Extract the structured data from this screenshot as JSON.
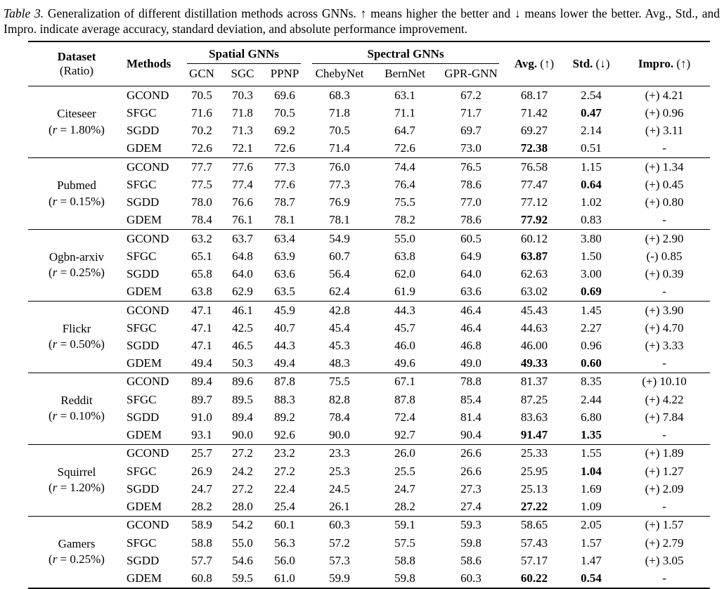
{
  "caption": {
    "label": "Table 3.",
    "text": "Generalization of different distillation methods across GNNs. ↑ means higher the better and ↓ means lower the better. Avg., Std., and Impro. indicate average accuracy, standard deviation, and absolute performance improvement."
  },
  "table": {
    "col_headers": {
      "dataset_line1": "Dataset",
      "dataset_line2": "(Ratio)",
      "methods": "Methods",
      "spatial_group": "Spatial GNNs",
      "spectral_group": "Spectral GNNs",
      "spatial_cols": [
        "GCN",
        "SGC",
        "PPNP"
      ],
      "spectral_cols": [
        "ChebyNet",
        "BernNet",
        "GPR-GNN"
      ],
      "avg": {
        "name": "Avg.",
        "arrow": "(↑)"
      },
      "std": {
        "name": "Std.",
        "arrow": "(↓)"
      },
      "impro": {
        "name": "Impro.",
        "arrow": "(↑)"
      }
    },
    "groups": [
      {
        "dataset": "Citeseer",
        "ratio": "(r = 1.80%)",
        "rows": [
          {
            "method": "GCOND",
            "values": [
              "70.5",
              "70.3",
              "69.6",
              "68.3",
              "63.1",
              "67.2"
            ],
            "avg": "68.17",
            "avg_bold": false,
            "std": "2.54",
            "std_bold": false,
            "impro": "(+) 4.21"
          },
          {
            "method": "SFGC",
            "values": [
              "71.6",
              "71.8",
              "70.5",
              "71.8",
              "71.1",
              "71.7"
            ],
            "avg": "71.42",
            "avg_bold": false,
            "std": "0.47",
            "std_bold": true,
            "impro": "(+) 0.96"
          },
          {
            "method": "SGDD",
            "values": [
              "70.2",
              "71.3",
              "69.2",
              "70.5",
              "64.7",
              "69.7"
            ],
            "avg": "69.27",
            "avg_bold": false,
            "std": "2.14",
            "std_bold": false,
            "impro": "(+) 3.11"
          },
          {
            "method": "GDEM",
            "values": [
              "72.6",
              "72.1",
              "72.6",
              "71.4",
              "72.6",
              "73.0"
            ],
            "avg": "72.38",
            "avg_bold": true,
            "std": "0.51",
            "std_bold": false,
            "impro": "-"
          }
        ]
      },
      {
        "dataset": "Pubmed",
        "ratio": "(r = 0.15%)",
        "rows": [
          {
            "method": "GCOND",
            "values": [
              "77.7",
              "77.6",
              "77.3",
              "76.0",
              "74.4",
              "76.5"
            ],
            "avg": "76.58",
            "avg_bold": false,
            "std": "1.15",
            "std_bold": false,
            "impro": "(+) 1.34"
          },
          {
            "method": "SFGC",
            "values": [
              "77.5",
              "77.4",
              "77.6",
              "77.3",
              "76.4",
              "78.6"
            ],
            "avg": "77.47",
            "avg_bold": false,
            "std": "0.64",
            "std_bold": true,
            "impro": "(+) 0.45"
          },
          {
            "method": "SGDD",
            "values": [
              "78.0",
              "76.6",
              "78.7",
              "76.9",
              "75.5",
              "77.0"
            ],
            "avg": "77.12",
            "avg_bold": false,
            "std": "1.02",
            "std_bold": false,
            "impro": "(+) 0.80"
          },
          {
            "method": "GDEM",
            "values": [
              "78.4",
              "76.1",
              "78.1",
              "78.1",
              "78.2",
              "78.6"
            ],
            "avg": "77.92",
            "avg_bold": true,
            "std": "0.83",
            "std_bold": false,
            "impro": "-"
          }
        ]
      },
      {
        "dataset": "Ogbn-arxiv",
        "ratio": "(r = 0.25%)",
        "rows": [
          {
            "method": "GCOND",
            "values": [
              "63.2",
              "63.7",
              "63.4",
              "54.9",
              "55.0",
              "60.5"
            ],
            "avg": "60.12",
            "avg_bold": false,
            "std": "3.80",
            "std_bold": false,
            "impro": "(+) 2.90"
          },
          {
            "method": "SFGC",
            "values": [
              "65.1",
              "64.8",
              "63.9",
              "60.7",
              "63.8",
              "64.9"
            ],
            "avg": "63.87",
            "avg_bold": true,
            "std": "1.50",
            "std_bold": false,
            "impro": "(-) 0.85"
          },
          {
            "method": "SGDD",
            "values": [
              "65.8",
              "64.0",
              "63.6",
              "56.4",
              "62.0",
              "64.0"
            ],
            "avg": "62.63",
            "avg_bold": false,
            "std": "3.00",
            "std_bold": false,
            "impro": "(+) 0.39"
          },
          {
            "method": "GDEM",
            "values": [
              "63.8",
              "62.9",
              "63.5",
              "62.4",
              "61.9",
              "63.6"
            ],
            "avg": "63.02",
            "avg_bold": false,
            "std": "0.69",
            "std_bold": true,
            "impro": "-"
          }
        ]
      },
      {
        "dataset": "Flickr",
        "ratio": "(r = 0.50%)",
        "rows": [
          {
            "method": "GCOND",
            "values": [
              "47.1",
              "46.1",
              "45.9",
              "42.8",
              "44.3",
              "46.4"
            ],
            "avg": "45.43",
            "avg_bold": false,
            "std": "1.45",
            "std_bold": false,
            "impro": "(+) 3.90"
          },
          {
            "method": "SFGC",
            "values": [
              "47.1",
              "42.5",
              "40.7",
              "45.4",
              "45.7",
              "46.4"
            ],
            "avg": "44.63",
            "avg_bold": false,
            "std": "2.27",
            "std_bold": false,
            "impro": "(+) 4.70"
          },
          {
            "method": "SGDD",
            "values": [
              "47.1",
              "46.5",
              "44.3",
              "45.3",
              "46.0",
              "46.8"
            ],
            "avg": "46.00",
            "avg_bold": false,
            "std": "0.96",
            "std_bold": false,
            "impro": "(+) 3.33"
          },
          {
            "method": "GDEM",
            "values": [
              "49.4",
              "50.3",
              "49.4",
              "48.3",
              "49.6",
              "49.0"
            ],
            "avg": "49.33",
            "avg_bold": true,
            "std": "0.60",
            "std_bold": true,
            "impro": "-"
          }
        ]
      },
      {
        "dataset": "Reddit",
        "ratio": "(r = 0.10%)",
        "rows": [
          {
            "method": "GCOND",
            "values": [
              "89.4",
              "89.6",
              "87.8",
              "75.5",
              "67.1",
              "78.8"
            ],
            "avg": "81.37",
            "avg_bold": false,
            "std": "8.35",
            "std_bold": false,
            "impro": "(+) 10.10"
          },
          {
            "method": "SFGC",
            "values": [
              "89.7",
              "89.5",
              "88.3",
              "82.8",
              "87.8",
              "85.4"
            ],
            "avg": "87.25",
            "avg_bold": false,
            "std": "2.44",
            "std_bold": false,
            "impro": "(+) 4.22"
          },
          {
            "method": "SGDD",
            "values": [
              "91.0",
              "89.4",
              "89.2",
              "78.4",
              "72.4",
              "81.4"
            ],
            "avg": "83.63",
            "avg_bold": false,
            "std": "6.80",
            "std_bold": false,
            "impro": "(+) 7.84"
          },
          {
            "method": "GDEM",
            "values": [
              "93.1",
              "90.0",
              "92.6",
              "90.0",
              "92.7",
              "90.4"
            ],
            "avg": "91.47",
            "avg_bold": true,
            "std": "1.35",
            "std_bold": true,
            "impro": "-"
          }
        ]
      },
      {
        "dataset": "Squirrel",
        "ratio": "(r = 1.20%)",
        "rows": [
          {
            "method": "GCOND",
            "values": [
              "25.7",
              "27.2",
              "23.2",
              "23.3",
              "26.0",
              "26.6"
            ],
            "avg": "25.33",
            "avg_bold": false,
            "std": "1.55",
            "std_bold": false,
            "impro": "(+) 1.89"
          },
          {
            "method": "SFGC",
            "values": [
              "26.9",
              "24.2",
              "27.2",
              "25.3",
              "25.5",
              "26.6"
            ],
            "avg": "25.95",
            "avg_bold": false,
            "std": "1.04",
            "std_bold": true,
            "impro": "(+) 1.27"
          },
          {
            "method": "SGDD",
            "values": [
              "24.7",
              "27.2",
              "22.4",
              "24.5",
              "24.7",
              "27.3"
            ],
            "avg": "25.13",
            "avg_bold": false,
            "std": "1.69",
            "std_bold": false,
            "impro": "(+) 2.09"
          },
          {
            "method": "GDEM",
            "values": [
              "28.2",
              "28.0",
              "25.4",
              "26.1",
              "28.2",
              "27.4"
            ],
            "avg": "27.22",
            "avg_bold": true,
            "std": "1.09",
            "std_bold": false,
            "impro": "-"
          }
        ]
      },
      {
        "dataset": "Gamers",
        "ratio": "(r = 0.25%)",
        "rows": [
          {
            "method": "GCOND",
            "values": [
              "58.9",
              "54.2",
              "60.1",
              "60.3",
              "59.1",
              "59.3"
            ],
            "avg": "58.65",
            "avg_bold": false,
            "std": "2.05",
            "std_bold": false,
            "impro": "(+) 1.57"
          },
          {
            "method": "SFGC",
            "values": [
              "58.8",
              "55.0",
              "56.3",
              "57.2",
              "57.5",
              "59.8"
            ],
            "avg": "57.43",
            "avg_bold": false,
            "std": "1.57",
            "std_bold": false,
            "impro": "(+) 2.79"
          },
          {
            "method": "SGDD",
            "values": [
              "57.7",
              "54.6",
              "56.0",
              "57.3",
              "58.8",
              "58.6"
            ],
            "avg": "57.17",
            "avg_bold": false,
            "std": "1.47",
            "std_bold": false,
            "impro": "(+) 3.05"
          },
          {
            "method": "GDEM",
            "values": [
              "60.8",
              "59.5",
              "61.0",
              "59.9",
              "59.8",
              "60.3"
            ],
            "avg": "60.22",
            "avg_bold": true,
            "std": "0.54",
            "std_bold": true,
            "impro": "-"
          }
        ]
      }
    ]
  }
}
